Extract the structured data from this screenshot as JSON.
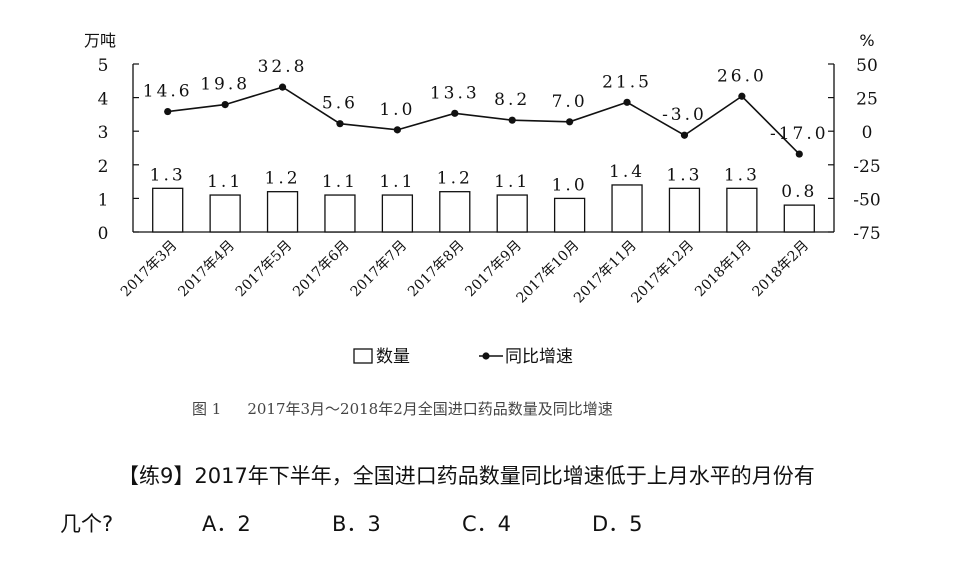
{
  "chart_data": {
    "type": "bar+line",
    "categories": [
      "2017年3月",
      "2017年4月",
      "2017年5月",
      "2017年6月",
      "2017年7月",
      "2017年8月",
      "2017年9月",
      "2017年10月",
      "2017年11月",
      "2017年12月",
      "2018年1月",
      "2018年2月"
    ],
    "series": [
      {
        "name": "数量",
        "type": "bar",
        "axis": "left",
        "values": [
          1.3,
          1.1,
          1.2,
          1.1,
          1.1,
          1.2,
          1.1,
          1.0,
          1.4,
          1.3,
          1.3,
          0.8
        ],
        "labels": [
          "1.3",
          "1.1",
          "1.2",
          "1.1",
          "1.1",
          "1.2",
          "1.1",
          "1.0",
          "1.4",
          "1.3",
          "1.3",
          "0.8"
        ]
      },
      {
        "name": "同比增速",
        "type": "line",
        "axis": "right",
        "values": [
          14.6,
          19.8,
          32.8,
          5.6,
          1.0,
          13.3,
          8.2,
          7.0,
          21.5,
          -3.0,
          26.0,
          -17.0
        ],
        "labels": [
          "14.6",
          "19.8",
          "32.8",
          "5.6",
          "1.0",
          "13.3",
          "8.2",
          "7.0",
          "21.5",
          "-3.0",
          "26.0",
          "-17.0"
        ]
      }
    ],
    "left_axis": {
      "unit": "万吨",
      "ticks": [
        "5",
        "4",
        "3",
        "2",
        "1",
        "0"
      ],
      "range": [
        0,
        5
      ]
    },
    "right_axis": {
      "unit": "%",
      "ticks": [
        "50",
        "25",
        "0",
        "-25",
        "-50",
        "-75"
      ],
      "range": [
        -75,
        50
      ]
    },
    "legend": {
      "position": "bottom"
    }
  },
  "caption": {
    "fig": "图 1",
    "text": "2017年3月～2018年2月全国进口药品数量及同比增速"
  },
  "question": {
    "text": "【练9】2017年下半年，全国进口药品数量同比增速低于上月水平的月份有",
    "prefix": "几个?",
    "options": [
      "A．2",
      "B．3",
      "C．4",
      "D．5"
    ]
  },
  "colors": {
    "ink": "#111111",
    "bar_fill": "#ffffff",
    "caption": "#444444"
  }
}
